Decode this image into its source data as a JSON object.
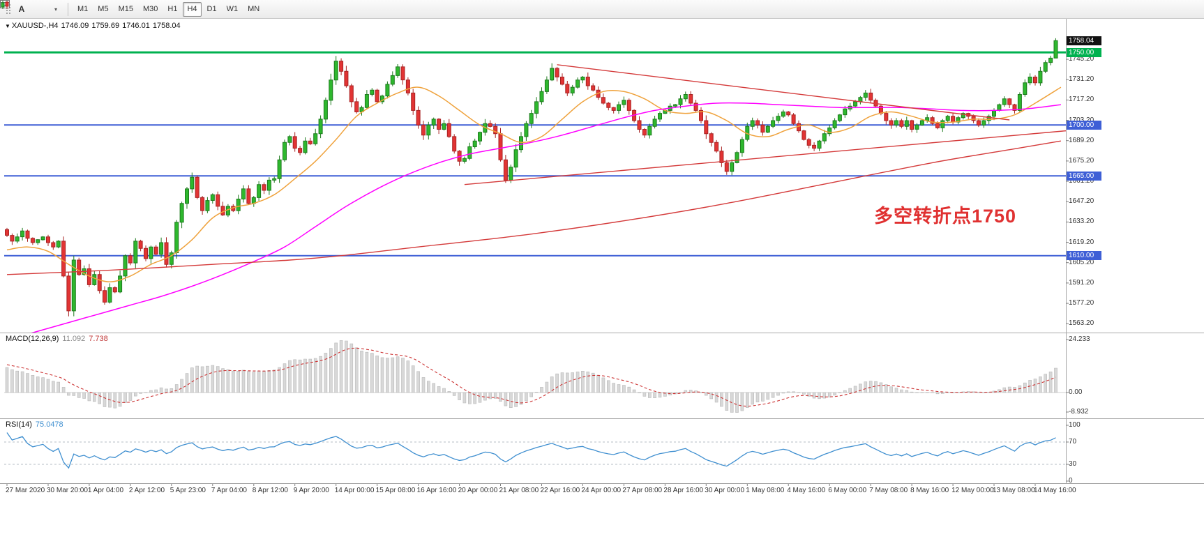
{
  "toolbar": {
    "text_tool_label": "A",
    "timeframes": [
      {
        "label": "M1",
        "active": false
      },
      {
        "label": "M5",
        "active": false
      },
      {
        "label": "M15",
        "active": false
      },
      {
        "label": "M30",
        "active": false
      },
      {
        "label": "H1",
        "active": false
      },
      {
        "label": "H4",
        "active": true
      },
      {
        "label": "D1",
        "active": false
      },
      {
        "label": "W1",
        "active": false
      },
      {
        "label": "MN",
        "active": false
      }
    ]
  },
  "header": {
    "symbol": "XAUUSD-,H4",
    "open": "1746.09",
    "high": "1759.69",
    "low": "1746.01",
    "close": "1758.04"
  },
  "annotation": {
    "text": "多空转折点1750",
    "color": "#e03131"
  },
  "price_axis": {
    "current": {
      "label": "1758.04",
      "price": 1758.04,
      "bg": "#111111"
    },
    "levels": [
      {
        "label": "1750.00",
        "price": 1750.0,
        "color": "#00b14f"
      },
      {
        "label": "1700.00",
        "price": 1700.0,
        "color": "#3e5fd6"
      },
      {
        "label": "1665.00",
        "price": 1665.0,
        "color": "#3e5fd6"
      },
      {
        "label": "1610.00",
        "price": 1610.0,
        "color": "#3e5fd6"
      }
    ],
    "ticks": [
      "1745.20",
      "1731.20",
      "1717.20",
      "1703.20",
      "1689.20",
      "1675.20",
      "1661.20",
      "1647.20",
      "1633.20",
      "1619.20",
      "1605.20",
      "1591.20",
      "1577.20",
      "1563.20"
    ]
  },
  "chart_data": {
    "type": "candlestick",
    "symbol": "XAUUSD",
    "timeframe": "H4",
    "ylim": [
      1557,
      1773
    ],
    "time_labels": [
      "27 Mar 2020",
      "30 Mar 20:00",
      "1 Apr 04:00",
      "2 Apr 12:00",
      "5 Apr 23:00",
      "7 Apr 04:00",
      "8 Apr 12:00",
      "9 Apr 20:00",
      "14 Apr 00:00",
      "15 Apr 08:00",
      "16 Apr 16:00",
      "20 Apr 00:00",
      "21 Apr 08:00",
      "22 Apr 16:00",
      "24 Apr 00:00",
      "27 Apr 08:00",
      "28 Apr 16:00",
      "30 Apr 00:00",
      "1 May 08:00",
      "4 May 16:00",
      "6 May 00:00",
      "7 May 08:00",
      "8 May 16:00",
      "12 May 00:00",
      "13 May 08:00",
      "14 May 16:00"
    ],
    "price_path": [
      1628,
      1624,
      1620,
      1623,
      1627,
      1622,
      1619,
      1621,
      1623,
      1619,
      1616,
      1620,
      1596,
      1572,
      1607,
      1597,
      1601,
      1590,
      1597,
      1586,
      1578,
      1588,
      1585,
      1596,
      1610,
      1605,
      1620,
      1615,
      1608,
      1616,
      1611,
      1619,
      1604,
      1612,
      1633,
      1646,
      1656,
      1664,
      1650,
      1641,
      1648,
      1652,
      1644,
      1638,
      1644,
      1641,
      1649,
      1656,
      1646,
      1650,
      1659,
      1655,
      1662,
      1663,
      1676,
      1688,
      1692,
      1684,
      1681,
      1689,
      1687,
      1694,
      1704,
      1717,
      1731,
      1744,
      1737,
      1727,
      1716,
      1709,
      1712,
      1721,
      1724,
      1716,
      1720,
      1728,
      1734,
      1740,
      1731,
      1722,
      1710,
      1700,
      1693,
      1700,
      1704,
      1697,
      1701,
      1692,
      1682,
      1675,
      1677,
      1685,
      1689,
      1695,
      1701,
      1699,
      1694,
      1676,
      1662,
      1671,
      1683,
      1692,
      1701,
      1708,
      1716,
      1723,
      1731,
      1739,
      1733,
      1728,
      1722,
      1726,
      1731,
      1733,
      1727,
      1724,
      1719,
      1715,
      1712,
      1710,
      1714,
      1717,
      1710,
      1703,
      1697,
      1693,
      1699,
      1704,
      1708,
      1710,
      1713,
      1714,
      1718,
      1721,
      1715,
      1710,
      1703,
      1694,
      1688,
      1682,
      1674,
      1668,
      1674,
      1681,
      1690,
      1699,
      1703,
      1700,
      1695,
      1699,
      1703,
      1706,
      1709,
      1707,
      1701,
      1696,
      1690,
      1686,
      1684,
      1689,
      1694,
      1698,
      1703,
      1707,
      1711,
      1713,
      1716,
      1719,
      1722,
      1717,
      1713,
      1708,
      1703,
      1700,
      1703,
      1699,
      1703,
      1697,
      1700,
      1703,
      1705,
      1701,
      1698,
      1703,
      1706,
      1702,
      1705,
      1708,
      1706,
      1703,
      1700,
      1703,
      1706,
      1710,
      1714,
      1718,
      1714,
      1710,
      1721,
      1729,
      1733,
      1729,
      1737,
      1743,
      1746,
      1758
    ],
    "warmup_path": [
      [
        -40,
        1545
      ],
      [
        -25,
        1585
      ],
      [
        -12,
        1618
      ],
      [
        0,
        1628
      ]
    ],
    "last_candle": {
      "open": 1746.09,
      "high": 1759.69,
      "low": 1746.01,
      "close": 1758.04
    },
    "moving_averages": [
      {
        "name": "ma-fast-orange",
        "color": "#efa23c",
        "width": 1.5,
        "points": [
          [
            0,
            1614
          ],
          [
            4,
            1616
          ],
          [
            8,
            1613
          ],
          [
            12,
            1604
          ],
          [
            16,
            1596
          ],
          [
            20,
            1592
          ],
          [
            24,
            1596
          ],
          [
            28,
            1604
          ],
          [
            32,
            1610
          ],
          [
            36,
            1621
          ],
          [
            40,
            1636
          ],
          [
            44,
            1643
          ],
          [
            48,
            1646
          ],
          [
            52,
            1652
          ],
          [
            56,
            1663
          ],
          [
            60,
            1675
          ],
          [
            64,
            1690
          ],
          [
            68,
            1706
          ],
          [
            72,
            1715
          ],
          [
            76,
            1722
          ],
          [
            80,
            1726
          ],
          [
            84,
            1720
          ],
          [
            88,
            1710
          ],
          [
            92,
            1700
          ],
          [
            96,
            1694
          ],
          [
            100,
            1688
          ],
          [
            104,
            1692
          ],
          [
            108,
            1704
          ],
          [
            112,
            1716
          ],
          [
            116,
            1723
          ],
          [
            120,
            1723
          ],
          [
            124,
            1718
          ],
          [
            128,
            1710
          ],
          [
            132,
            1708
          ],
          [
            136,
            1709
          ],
          [
            140,
            1703
          ],
          [
            144,
            1694
          ],
          [
            148,
            1692
          ],
          [
            152,
            1697
          ],
          [
            156,
            1700
          ],
          [
            160,
            1695
          ],
          [
            164,
            1698
          ],
          [
            168,
            1706
          ],
          [
            172,
            1709
          ],
          [
            176,
            1706
          ],
          [
            180,
            1702
          ],
          [
            184,
            1702
          ],
          [
            188,
            1704
          ],
          [
            192,
            1704
          ],
          [
            196,
            1707
          ],
          [
            200,
            1715
          ],
          [
            205,
            1726
          ]
        ]
      },
      {
        "name": "ma-mid-magenta",
        "color": "#ff00ff",
        "width": 1.5,
        "points": [
          [
            0,
            1552
          ],
          [
            6,
            1558
          ],
          [
            12,
            1564
          ],
          [
            18,
            1570
          ],
          [
            24,
            1576
          ],
          [
            30,
            1582
          ],
          [
            36,
            1589
          ],
          [
            42,
            1597
          ],
          [
            48,
            1606
          ],
          [
            54,
            1616
          ],
          [
            60,
            1630
          ],
          [
            66,
            1644
          ],
          [
            72,
            1656
          ],
          [
            78,
            1666
          ],
          [
            84,
            1674
          ],
          [
            90,
            1680
          ],
          [
            96,
            1684
          ],
          [
            102,
            1688
          ],
          [
            108,
            1693
          ],
          [
            114,
            1699
          ],
          [
            120,
            1705
          ],
          [
            126,
            1710
          ],
          [
            132,
            1713
          ],
          [
            138,
            1715
          ],
          [
            144,
            1715
          ],
          [
            150,
            1714
          ],
          [
            156,
            1713
          ],
          [
            162,
            1712
          ],
          [
            168,
            1712
          ],
          [
            174,
            1712
          ],
          [
            180,
            1711
          ],
          [
            186,
            1710
          ],
          [
            192,
            1710
          ],
          [
            198,
            1711
          ],
          [
            205,
            1714
          ]
        ]
      },
      {
        "name": "ma-slow-red",
        "color": "#d43a3a",
        "width": 1.4,
        "points": [
          [
            0,
            1597
          ],
          [
            20,
            1600
          ],
          [
            40,
            1604
          ],
          [
            55,
            1607
          ],
          [
            65,
            1610
          ],
          [
            80,
            1616
          ],
          [
            100,
            1624
          ],
          [
            120,
            1634
          ],
          [
            140,
            1646
          ],
          [
            160,
            1660
          ],
          [
            180,
            1674
          ],
          [
            195,
            1683
          ],
          [
            205,
            1689
          ]
        ]
      }
    ],
    "trendlines": [
      {
        "name": "descending-trendline",
        "color": "#d43a3a",
        "from": [
          107,
          1741.5
        ],
        "to": [
          195,
          1703.5
        ]
      },
      {
        "name": "ascending-trendline",
        "color": "#d43a3a",
        "from": [
          89,
          1659
        ],
        "to": [
          206,
          1696
        ]
      }
    ],
    "hlines": [
      {
        "price": 1750.0,
        "color": "#00b14f",
        "width": 3
      },
      {
        "price": 1700.0,
        "color": "#3e5fd6",
        "width": 2
      },
      {
        "price": 1665.0,
        "color": "#3e5fd6",
        "width": 2
      },
      {
        "price": 1610.0,
        "color": "#3e5fd6",
        "width": 2
      }
    ]
  },
  "macd": {
    "label": "MACD(12,26,9)",
    "value_main": "11.092",
    "value_signal": "7.738",
    "params": {
      "fast": 12,
      "slow": 26,
      "signal": 9
    },
    "scale": {
      "top": "24.233",
      "zero": "0.00",
      "bottom": "-8.932"
    },
    "colors": {
      "histogram": "#d8d8d8",
      "histogram_border": "#b8b8b8",
      "signal": "#cc3333"
    }
  },
  "rsi": {
    "label": "RSI(14)",
    "value": "75.0478",
    "period": 14,
    "scale": [
      "100",
      "70",
      "30",
      "0"
    ],
    "levels": [
      70,
      30
    ],
    "color": "#3f8fd0",
    "levels_color": "#b5bcc4"
  },
  "candle_colors": {
    "up": "#2eb82e",
    "up_dark": "#1d7a1d",
    "down": "#e23434",
    "down_dark": "#a82222"
  }
}
